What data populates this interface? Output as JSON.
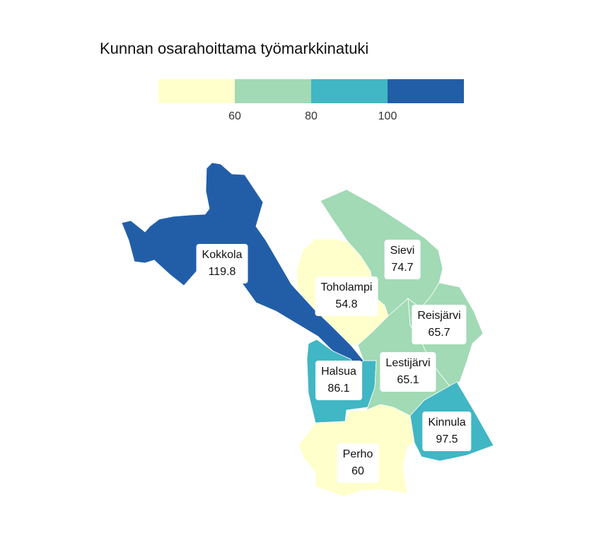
{
  "title": "Kunnan osarahoittama työmarkkinatuki",
  "legend": {
    "colors": [
      "#ffffcc",
      "#a1dab4",
      "#41b6c4",
      "#225ea8"
    ],
    "breaks": [
      "60",
      "80",
      "100"
    ]
  },
  "municipalities": [
    {
      "name": "Kokkola",
      "value": "119.8",
      "color": "#225ea8"
    },
    {
      "name": "Sievi",
      "value": "74.7",
      "color": "#a1dab4"
    },
    {
      "name": "Toholampi",
      "value": "54.8",
      "color": "#ffffcc"
    },
    {
      "name": "Reisjärvi",
      "value": "65.7",
      "color": "#a1dab4"
    },
    {
      "name": "Halsua",
      "value": "86.1",
      "color": "#41b6c4"
    },
    {
      "name": "Lestijärvi",
      "value": "65.1",
      "color": "#a1dab4"
    },
    {
      "name": "Kinnula",
      "value": "97.5",
      "color": "#41b6c4"
    },
    {
      "name": "Perho",
      "value": "60",
      "color": "#ffffcc"
    }
  ]
}
